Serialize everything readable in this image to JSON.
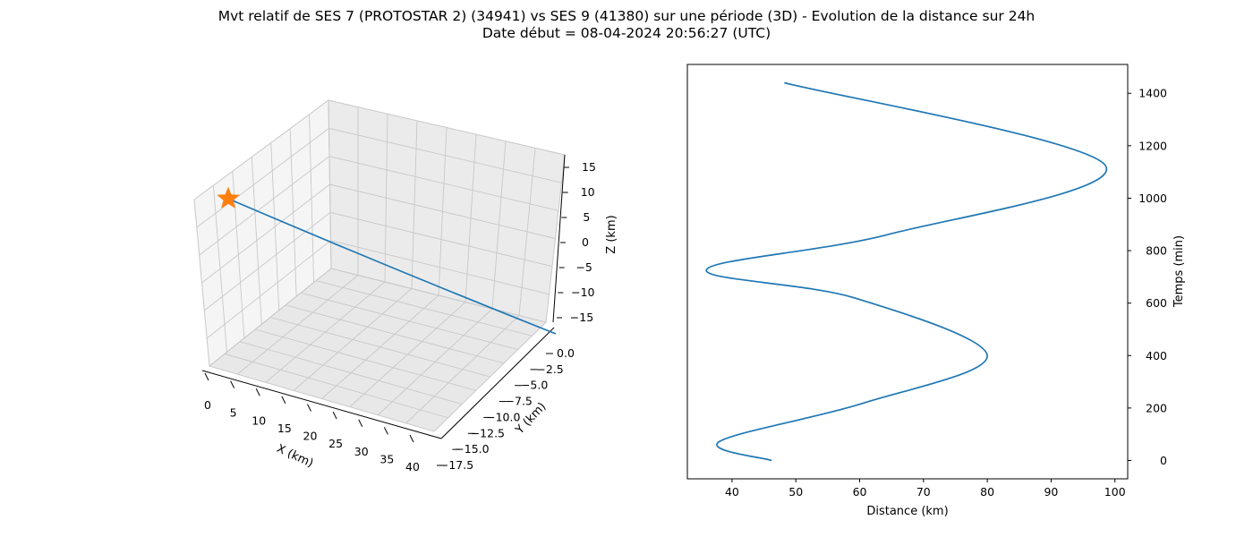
{
  "title_line1": "Mvt relatif de SES 7 (PROTOSTAR 2) (34941) vs SES 9 (41380) sur une période (3D) - Evolution de la distance sur 24h",
  "title_line2": "Date début = 08-04-2024 20:56:27 (UTC)",
  "colors": {
    "series": "#1f77b4",
    "marker": "#ff7f0e",
    "pane": "#f2f2f2",
    "grid": "#cccccc"
  },
  "chart_data": [
    {
      "type": "line",
      "projection": "3d",
      "xlabel": "X (km)",
      "ylabel": "Y (km)",
      "zlabel": "Z (km)",
      "x_ticks": [
        "0",
        "5",
        "10",
        "15",
        "20",
        "25",
        "30",
        "35",
        "40"
      ],
      "y_ticks": [
        "0.0",
        "−2.5",
        "−5.0",
        "−7.5",
        "−10.0",
        "−12.5",
        "−15.0",
        "−17.5"
      ],
      "z_ticks": [
        "15",
        "10",
        "5",
        "0",
        "−5",
        "−10",
        "−15"
      ],
      "xlim": [
        0,
        40
      ],
      "ylim": [
        -17.5,
        0
      ],
      "zlim": [
        -15,
        15
      ],
      "grid": true,
      "series": [
        {
          "x": [
            40,
            20,
            0
          ],
          "y": [
            -17.5,
            -8.7,
            0
          ],
          "z": [
            -15,
            0,
            15
          ]
        }
      ],
      "marker": {
        "shape": "star",
        "x": 0,
        "y": 0,
        "z": 15
      }
    },
    {
      "type": "line",
      "xlabel": "Distance (km)",
      "ylabel": "Temps (min)",
      "y_axis_side": "right",
      "x_ticks": [
        "40",
        "50",
        "60",
        "70",
        "80",
        "90",
        "100"
      ],
      "y_ticks": [
        "0",
        "200",
        "400",
        "600",
        "800",
        "1000",
        "1200",
        "1400"
      ],
      "xlim": [
        33,
        102
      ],
      "ylim": [
        -70,
        1510
      ],
      "grid": false,
      "series": [
        {
          "x": [
            46.2,
            38,
            60.5,
            80,
            59,
            36,
            64.5,
            98.5,
            48.2
          ],
          "y": [
            0,
            72,
            218,
            400,
            621,
            728,
            862,
            1125,
            1440
          ]
        }
      ]
    }
  ]
}
